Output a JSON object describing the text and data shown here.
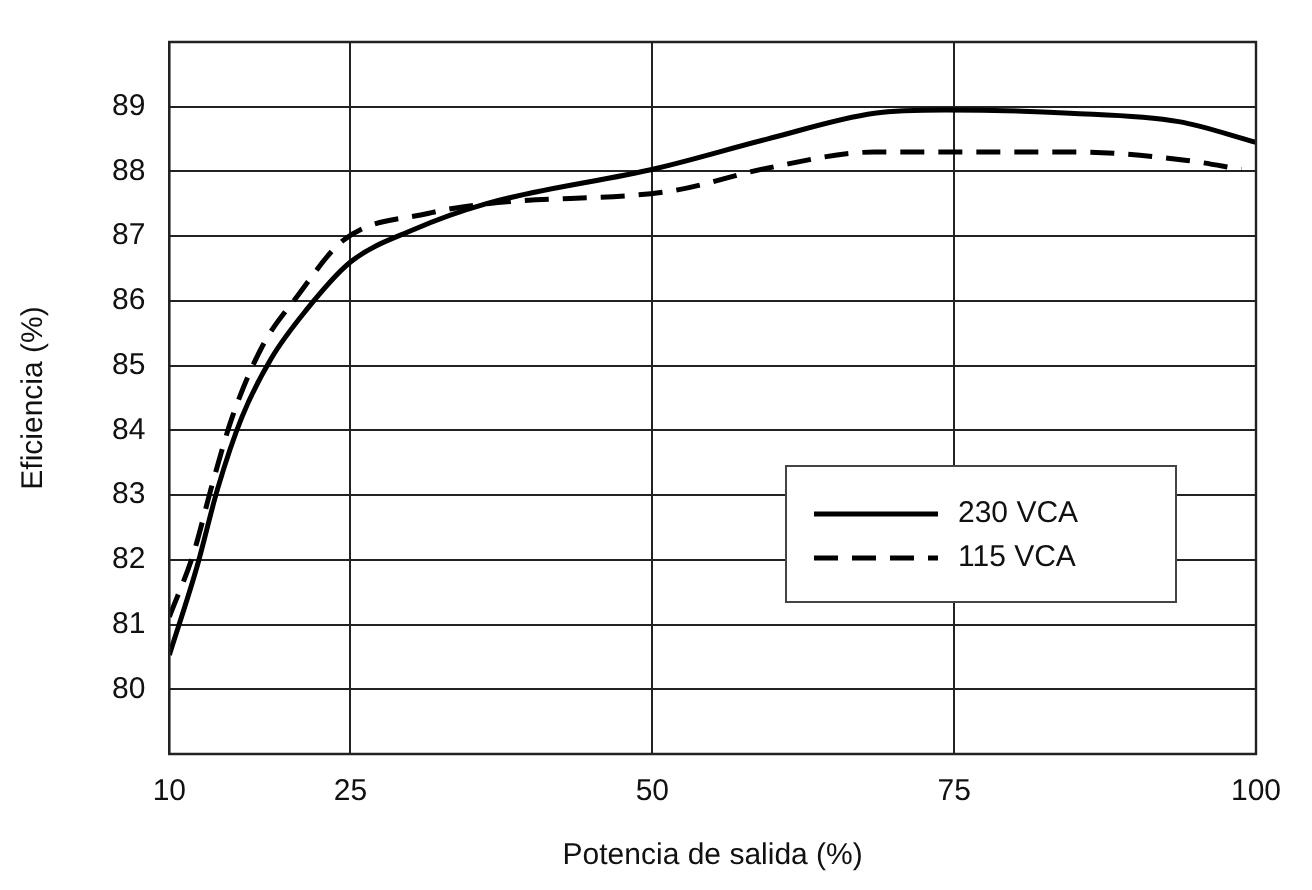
{
  "chart_data": {
    "type": "line",
    "xlabel": "Potencia de salida (%)",
    "ylabel": "Eficiencia (%)",
    "xlim": [
      10,
      100
    ],
    "xticks": [
      10,
      25,
      50,
      75,
      100
    ],
    "ylim": [
      79,
      90
    ],
    "yticks": [
      80,
      81,
      82,
      83,
      84,
      85,
      86,
      87,
      88,
      89
    ],
    "grid": true,
    "legend": "bottom right",
    "marker": "none",
    "series": [
      {
        "name": "230 VCA",
        "color": "#000000",
        "line_style": "solid",
        "x": [
          10,
          12.3,
          14,
          16,
          18.4,
          21.3,
          25,
          30.2,
          36.2,
          50.4,
          59.5,
          68.4,
          74.3,
          84.6,
          93.6,
          100
        ],
        "values": [
          80.53,
          81.9,
          83.1,
          84.2,
          85.1,
          85.85,
          86.6,
          87.1,
          87.5,
          88.05,
          88.5,
          88.9,
          88.95,
          88.9,
          88.77,
          88.45
        ]
      },
      {
        "name": "115 VCA",
        "color": "#000000",
        "line_style": "dashed",
        "x": [
          10,
          12,
          13.6,
          15.2,
          17.7,
          20.5,
          24.5,
          31.4,
          36.2,
          51.6,
          59.5,
          68.4,
          75,
          85.3,
          94.3,
          98.8
        ],
        "values": [
          81.12,
          82.1,
          83.2,
          84.2,
          85.3,
          86.05,
          86.95,
          87.35,
          87.5,
          87.7,
          88.05,
          88.3,
          88.3,
          88.3,
          88.17,
          88.03
        ]
      }
    ]
  }
}
